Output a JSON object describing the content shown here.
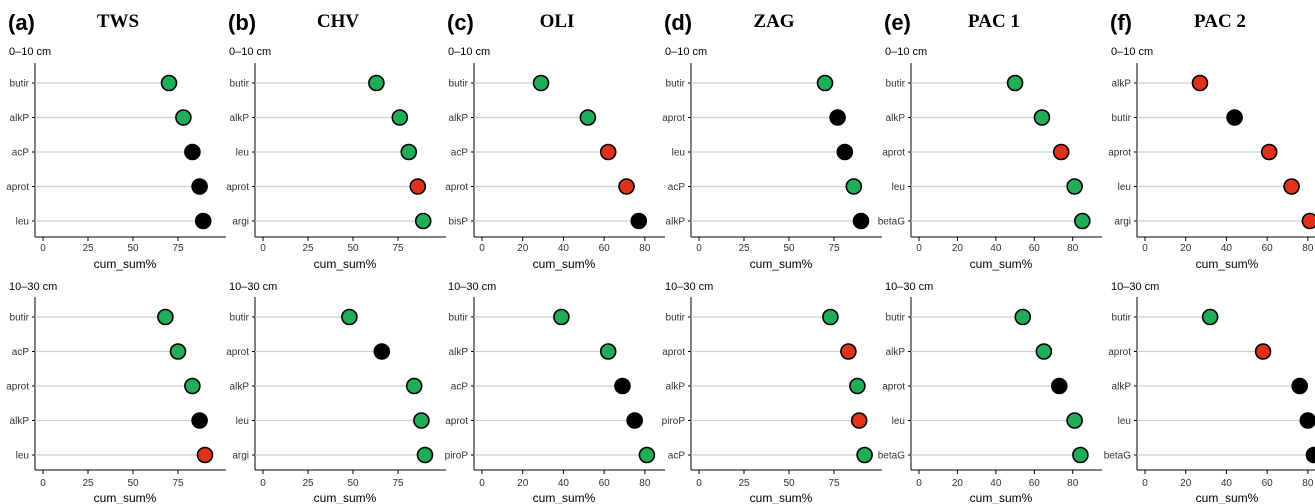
{
  "colors": {
    "green": "#1fae57",
    "red": "#e0311a",
    "black": "#000000",
    "lollipop": "#cfcfcf",
    "axis": "#000000"
  },
  "chart_data": [
    {
      "type": "scatter",
      "panel_letter": "(a)",
      "site": "TWS",
      "xlabel": "cum_sum%",
      "xlim": [
        0,
        95
      ],
      "xticks": [
        0,
        25,
        50,
        75
      ],
      "depths": [
        {
          "label": "0–10 cm",
          "points": [
            {
              "label": "butir",
              "x": 70,
              "color": "green"
            },
            {
              "label": "alkP",
              "x": 78,
              "color": "green"
            },
            {
              "label": "acP",
              "x": 83,
              "color": "black"
            },
            {
              "label": "aprot",
              "x": 87,
              "color": "black"
            },
            {
              "label": "leu",
              "x": 89,
              "color": "black"
            }
          ]
        },
        {
          "label": "10–30 cm",
          "points": [
            {
              "label": "butir",
              "x": 68,
              "color": "green"
            },
            {
              "label": "acP",
              "x": 75,
              "color": "green"
            },
            {
              "label": "aprot",
              "x": 83,
              "color": "green"
            },
            {
              "label": "alkP",
              "x": 87,
              "color": "black"
            },
            {
              "label": "leu",
              "x": 90,
              "color": "red"
            }
          ]
        }
      ]
    },
    {
      "type": "scatter",
      "panel_letter": "(b)",
      "site": "CHV",
      "xlabel": "cum_sum%",
      "xlim": [
        0,
        95
      ],
      "xticks": [
        0,
        25,
        50,
        75
      ],
      "depths": [
        {
          "label": "0–10 cm",
          "points": [
            {
              "label": "butir",
              "x": 63,
              "color": "green"
            },
            {
              "label": "alkP",
              "x": 76,
              "color": "green"
            },
            {
              "label": "leu",
              "x": 81,
              "color": "green"
            },
            {
              "label": "aprot",
              "x": 86,
              "color": "red"
            },
            {
              "label": "argi",
              "x": 89,
              "color": "green"
            }
          ]
        },
        {
          "label": "10–30 cm",
          "points": [
            {
              "label": "butir",
              "x": 48,
              "color": "green"
            },
            {
              "label": "aprot",
              "x": 66,
              "color": "black"
            },
            {
              "label": "alkP",
              "x": 84,
              "color": "green"
            },
            {
              "label": "leu",
              "x": 88,
              "color": "green"
            },
            {
              "label": "argi",
              "x": 90,
              "color": "green"
            }
          ]
        }
      ]
    },
    {
      "type": "scatter",
      "panel_letter": "(c)",
      "site": "OLI",
      "xlabel": "cum_sum%",
      "xlim": [
        0,
        84
      ],
      "xticks": [
        0,
        20,
        40,
        60,
        80
      ],
      "depths": [
        {
          "label": "0–10 cm",
          "points": [
            {
              "label": "butir",
              "x": 29,
              "color": "green"
            },
            {
              "label": "alkP",
              "x": 52,
              "color": "green"
            },
            {
              "label": "acP",
              "x": 62,
              "color": "red"
            },
            {
              "label": "aprot",
              "x": 71,
              "color": "red"
            },
            {
              "label": "bisP",
              "x": 77,
              "color": "black"
            }
          ]
        },
        {
          "label": "10–30 cm",
          "points": [
            {
              "label": "butir",
              "x": 39,
              "color": "green"
            },
            {
              "label": "alkP",
              "x": 62,
              "color": "green"
            },
            {
              "label": "acP",
              "x": 69,
              "color": "black"
            },
            {
              "label": "aprot",
              "x": 75,
              "color": "black"
            },
            {
              "label": "piroP",
              "x": 81,
              "color": "green"
            }
          ]
        }
      ]
    },
    {
      "type": "scatter",
      "panel_letter": "(d)",
      "site": "ZAG",
      "xlabel": "cum_sum%",
      "xlim": [
        0,
        95
      ],
      "xticks": [
        0,
        25,
        50,
        75
      ],
      "depths": [
        {
          "label": "0–10 cm",
          "points": [
            {
              "label": "butir",
              "x": 70,
              "color": "green"
            },
            {
              "label": "aprot",
              "x": 77,
              "color": "black"
            },
            {
              "label": "leu",
              "x": 81,
              "color": "black"
            },
            {
              "label": "acP",
              "x": 86,
              "color": "green"
            },
            {
              "label": "alkP",
              "x": 90,
              "color": "black"
            }
          ]
        },
        {
          "label": "10–30 cm",
          "points": [
            {
              "label": "butir",
              "x": 73,
              "color": "green"
            },
            {
              "label": "aprot",
              "x": 83,
              "color": "red"
            },
            {
              "label": "alkP",
              "x": 88,
              "color": "green"
            },
            {
              "label": "piroP",
              "x": 89,
              "color": "red"
            },
            {
              "label": "acP",
              "x": 92,
              "color": "green"
            }
          ]
        }
      ]
    },
    {
      "type": "scatter",
      "panel_letter": "(e)",
      "site": "PAC 1",
      "xlabel": "cum_sum%",
      "xlim": [
        0,
        89
      ],
      "xticks": [
        0,
        20,
        40,
        60,
        80
      ],
      "depths": [
        {
          "label": "0–10 cm",
          "points": [
            {
              "label": "butir",
              "x": 50,
              "color": "green"
            },
            {
              "label": "alkP",
              "x": 64,
              "color": "green"
            },
            {
              "label": "aprot",
              "x": 74,
              "color": "red"
            },
            {
              "label": "leu",
              "x": 81,
              "color": "green"
            },
            {
              "label": "betaG",
              "x": 85,
              "color": "green"
            }
          ]
        },
        {
          "label": "10–30 cm",
          "points": [
            {
              "label": "butir",
              "x": 54,
              "color": "green"
            },
            {
              "label": "alkP",
              "x": 65,
              "color": "green"
            },
            {
              "label": "aprot",
              "x": 73,
              "color": "black"
            },
            {
              "label": "leu",
              "x": 81,
              "color": "green"
            },
            {
              "label": "betaG",
              "x": 84,
              "color": "green"
            }
          ]
        }
      ]
    },
    {
      "type": "scatter",
      "panel_letter": "(f)",
      "site": "PAC 2",
      "xlabel": "cum_sum%",
      "xlim": [
        0,
        84
      ],
      "xticks": [
        0,
        20,
        40,
        60,
        80
      ],
      "depths": [
        {
          "label": "0–10 cm",
          "points": [
            {
              "label": "alkP",
              "x": 27,
              "color": "red"
            },
            {
              "label": "butir",
              "x": 44,
              "color": "black"
            },
            {
              "label": "aprot",
              "x": 61,
              "color": "red"
            },
            {
              "label": "leu",
              "x": 72,
              "color": "red"
            },
            {
              "label": "argi",
              "x": 81,
              "color": "red"
            }
          ]
        },
        {
          "label": "10–30 cm",
          "points": [
            {
              "label": "butir",
              "x": 32,
              "color": "green"
            },
            {
              "label": "aprot",
              "x": 58,
              "color": "red"
            },
            {
              "label": "alkP",
              "x": 76,
              "color": "black"
            },
            {
              "label": "leu",
              "x": 80,
              "color": "black"
            },
            {
              "label": "betaG",
              "x": 83,
              "color": "black"
            }
          ]
        }
      ]
    }
  ]
}
